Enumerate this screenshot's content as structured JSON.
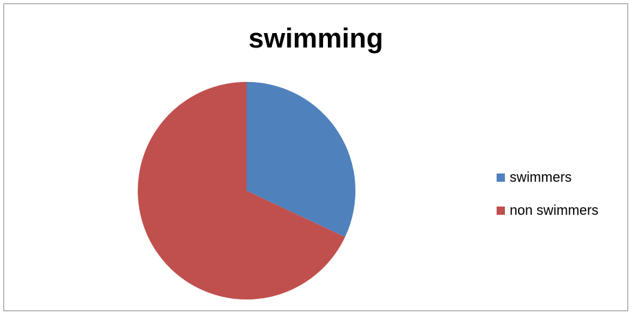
{
  "chart_data": {
    "type": "pie",
    "title": "swimming",
    "categories": [
      "swimmers",
      "non swimmers"
    ],
    "values": [
      32,
      68
    ],
    "colors": [
      "#4F81BD",
      "#C0504D"
    ],
    "start_angle_deg": 0,
    "direction": "clockwise",
    "legend_position": "right"
  }
}
